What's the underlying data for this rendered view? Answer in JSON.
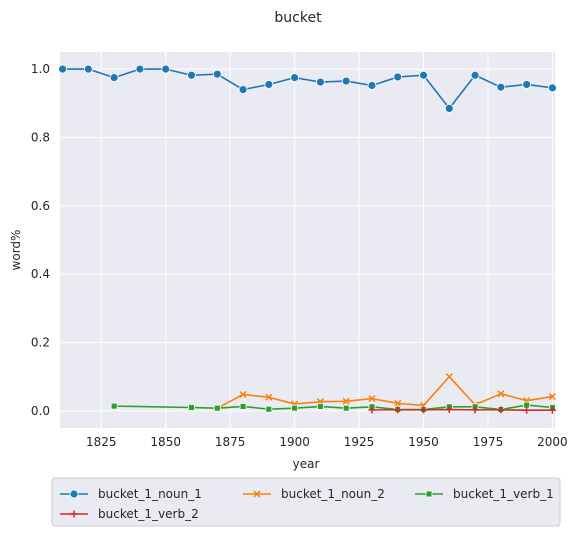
{
  "chart_data": {
    "type": "line",
    "title": "bucket",
    "xlabel": "year",
    "ylabel": "word%",
    "xlim": [
      1809,
      2001
    ],
    "ylim": [
      -0.05,
      1.05
    ],
    "xticks": [
      1825,
      1850,
      1875,
      1900,
      1925,
      1950,
      1975,
      2000
    ],
    "yticks": [
      0.0,
      0.2,
      0.4,
      0.6,
      0.8,
      1.0
    ],
    "grid": true,
    "legend_position": "bottom",
    "series": [
      {
        "name": "bucket_1_noun_1",
        "color": "#1f77b4",
        "marker": "circle",
        "x": [
          1810,
          1820,
          1830,
          1840,
          1850,
          1860,
          1870,
          1880,
          1890,
          1900,
          1910,
          1920,
          1930,
          1940,
          1950,
          1960,
          1970,
          1980,
          1990,
          2000
        ],
        "y": [
          1.0,
          1.0,
          0.975,
          1.0,
          1.0,
          0.982,
          0.985,
          0.94,
          0.955,
          0.975,
          0.962,
          0.965,
          0.952,
          0.977,
          0.982,
          0.885,
          0.982,
          0.947,
          0.955,
          0.945
        ]
      },
      {
        "name": "bucket_1_noun_2",
        "color": "#ff7f0e",
        "marker": "x",
        "x": [
          1870,
          1880,
          1890,
          1900,
          1910,
          1920,
          1930,
          1940,
          1950,
          1960,
          1970,
          1980,
          1990,
          2000
        ],
        "y": [
          0.008,
          0.048,
          0.04,
          0.02,
          0.027,
          0.028,
          0.036,
          0.022,
          0.016,
          0.1,
          0.018,
          0.05,
          0.03,
          0.042
        ]
      },
      {
        "name": "bucket_1_verb_1",
        "color": "#2ca02c",
        "marker": "square",
        "x": [
          1830,
          1860,
          1870,
          1880,
          1890,
          1900,
          1910,
          1920,
          1930,
          1940,
          1950,
          1960,
          1970,
          1980,
          1990,
          2000
        ],
        "y": [
          0.014,
          0.01,
          0.008,
          0.013,
          0.005,
          0.008,
          0.013,
          0.008,
          0.012,
          0.004,
          0.004,
          0.012,
          0.012,
          0.004,
          0.017,
          0.01
        ]
      },
      {
        "name": "bucket_1_verb_2",
        "color": "#d62728",
        "marker": "plus",
        "x": [
          1930,
          1940,
          1950,
          1960,
          1970,
          1980,
          1990,
          2000
        ],
        "y": [
          0.003,
          0.003,
          0.003,
          0.004,
          0.003,
          0.003,
          0.002,
          0.002
        ]
      }
    ]
  }
}
